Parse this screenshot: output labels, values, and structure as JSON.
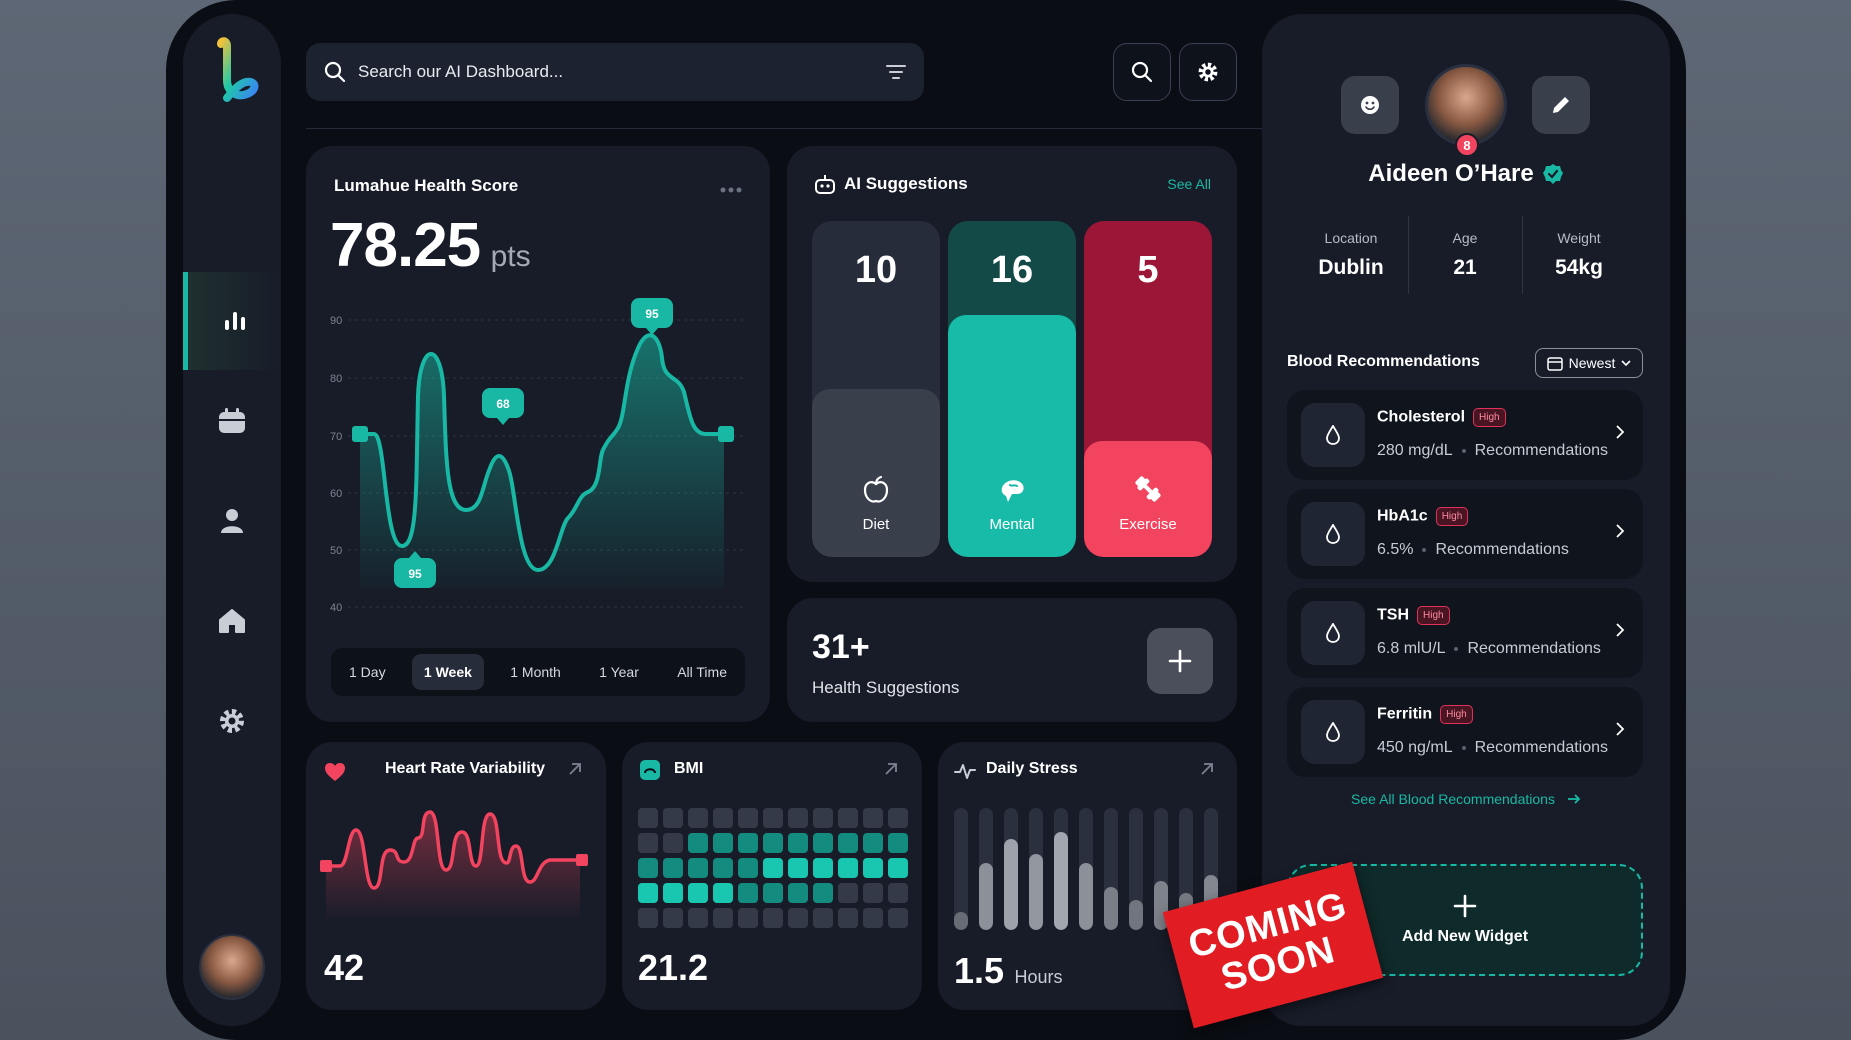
{
  "search": {
    "placeholder": "Search our AI Dashboard..."
  },
  "health_score": {
    "title": "Lumahue Health Score",
    "value": "78.25",
    "unit": "pts",
    "y_ticks": [
      "90",
      "80",
      "70",
      "60",
      "50",
      "40"
    ],
    "tooltips": [
      "95",
      "68",
      "95"
    ],
    "tabs": [
      "1 Day",
      "1 Week",
      "1 Month",
      "1 Year",
      "All Time"
    ],
    "active_tab": "1 Week",
    "accent": "#19b8a4"
  },
  "ai_suggestions": {
    "title": "AI Suggestions",
    "see_all": "See All",
    "items": [
      {
        "count": "10",
        "label": "Diet",
        "color": "#3a3f4c",
        "icon": "apple-icon"
      },
      {
        "count": "16",
        "label": "Mental",
        "color": "#17bba7",
        "icon": "brain-icon"
      },
      {
        "count": "5",
        "label": "Exercise",
        "color": "#f2445f",
        "icon": "dumbbell-icon"
      }
    ]
  },
  "health_suggestions": {
    "count": "31+",
    "label": "Health Suggestions"
  },
  "hrv": {
    "title": "Heart Rate Variability",
    "value": "42"
  },
  "bmi": {
    "title": "BMI",
    "value": "21.2"
  },
  "stress": {
    "title": "Daily Stress",
    "value": "1.5",
    "unit": "Hours",
    "levels": [
      0.15,
      0.55,
      0.75,
      0.62,
      0.8,
      0.55,
      0.35,
      0.25,
      0.4,
      0.3,
      0.45
    ]
  },
  "stamp": {
    "line1": "COMING",
    "line2": "SOON"
  },
  "profile": {
    "name": "Aideen O’Hare",
    "notification_count": "8",
    "stats": [
      {
        "label": "Location",
        "value": "Dublin"
      },
      {
        "label": "Age",
        "value": "21"
      },
      {
        "label": "Weight",
        "value": "54kg"
      }
    ]
  },
  "blood": {
    "title": "Blood Recommendations",
    "sort": "Newest",
    "badge": "High",
    "rec_label": "Recommendations",
    "items": [
      {
        "name": "Cholesterol",
        "value": "280 mg/dL"
      },
      {
        "name": "HbA1c",
        "value": "6.5%"
      },
      {
        "name": "TSH",
        "value": "6.8 mlU/L"
      },
      {
        "name": "Ferritin",
        "value": "450 ng/mL"
      }
    ],
    "see_all": "See All Blood Recommendations"
  },
  "widget": {
    "label": "Add New Widget"
  }
}
